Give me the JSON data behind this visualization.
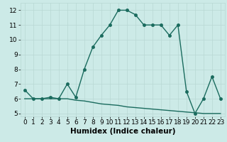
{
  "x_upper": [
    0,
    1,
    2,
    3,
    4,
    5,
    6,
    7,
    8,
    9,
    10,
    11,
    12,
    13,
    14,
    15,
    16,
    17,
    18,
    19,
    20,
    21,
    22,
    23
  ],
  "y_upper": [
    6.6,
    6.0,
    6.0,
    6.1,
    6.0,
    7.0,
    6.1,
    8.0,
    9.5,
    10.3,
    11.0,
    12.0,
    12.0,
    11.7,
    11.0,
    11.0,
    11.0,
    10.3,
    11.0,
    6.5,
    5.0,
    6.0,
    7.5,
    6.0
  ],
  "x_lower": [
    0,
    1,
    2,
    3,
    4,
    5,
    6,
    7,
    8,
    9,
    10,
    11,
    12,
    13,
    14,
    15,
    16,
    17,
    18,
    19,
    20,
    21,
    22,
    23
  ],
  "y_lower": [
    6.0,
    6.0,
    6.0,
    6.0,
    6.0,
    6.0,
    5.9,
    5.85,
    5.75,
    5.65,
    5.6,
    5.55,
    5.45,
    5.4,
    5.35,
    5.3,
    5.25,
    5.2,
    5.15,
    5.1,
    5.05,
    5.0,
    5.0,
    5.0
  ],
  "line_color": "#1a6b5e",
  "bg_color": "#cceae7",
  "grid_color": "#b8d8d4",
  "xlim": [
    -0.5,
    23.5
  ],
  "ylim": [
    4.8,
    12.5
  ],
  "yticks": [
    5,
    6,
    7,
    8,
    9,
    10,
    11,
    12
  ],
  "xticks": [
    0,
    1,
    2,
    3,
    4,
    5,
    6,
    7,
    8,
    9,
    10,
    11,
    12,
    13,
    14,
    15,
    16,
    17,
    18,
    19,
    20,
    21,
    22,
    23
  ],
  "xlabel": "Humidex (Indice chaleur)",
  "tick_fontsize": 6.5,
  "label_fontsize": 7.5,
  "marker_size": 2.5,
  "line_width": 1.0
}
